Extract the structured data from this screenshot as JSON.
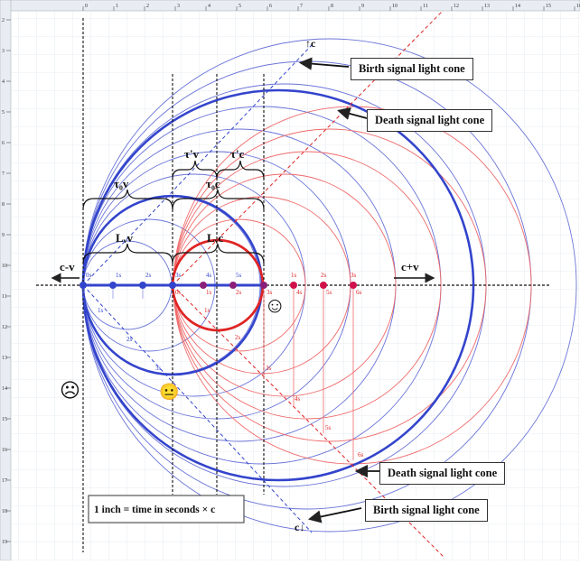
{
  "ruler": {
    "top_numbers": [
      "0",
      "1",
      "2",
      "3",
      "4",
      "5",
      "6",
      "7",
      "8",
      "9",
      "10",
      "11",
      "12",
      "13",
      "14",
      "15",
      "16"
    ],
    "left_numbers": [
      "2",
      "3",
      "4",
      "5",
      "6",
      "7",
      "8",
      "9",
      "10",
      "11",
      "12",
      "13",
      "14",
      "15",
      "16",
      "17",
      "18",
      "19"
    ]
  },
  "colors": {
    "blue": "#3344cc",
    "light_blue": "#6a74d8",
    "red": "#e02424",
    "light_red": "#ef6a6a",
    "magenta": "#d0104a",
    "purple": "#8a1f7a"
  },
  "labels": {
    "tau0_v": "τ₀v",
    "tau_prime_v": "τ'v",
    "tau_prime_c": "τ'c",
    "tau0_c": "τ₀c",
    "Lv_v": "Lᵥv",
    "Lc_c": "Lᵥc",
    "c_minus_v": "c-v",
    "c_plus_v": "c+v",
    "c_up": "↑c",
    "c_down": "c↓",
    "scale_note": "1 inch  = time in seconds × c"
  },
  "callouts": {
    "birth_top": "Birth signal light cone",
    "death_top": "Death signal light cone",
    "death_bottom": "Death signal light cone",
    "birth_bottom": "Birth signal light cone"
  },
  "faces": {
    "sad": "☹",
    "neutral": "😐",
    "happy": "☺"
  },
  "ticks": {
    "blue_axis": [
      "0s",
      "1s",
      "2s",
      "3s",
      "4s",
      "5s"
    ],
    "red_axis": [
      "0s",
      "1s",
      "2s",
      "3s",
      "4s",
      "5s",
      "6s"
    ],
    "red_top": [
      "1s",
      "2s",
      "3s"
    ],
    "blue_diag": [
      "1s",
      "2s",
      "3s"
    ],
    "red_diag": [
      "1s",
      "2s",
      "3s",
      "4s",
      "5s",
      "6s"
    ]
  }
}
